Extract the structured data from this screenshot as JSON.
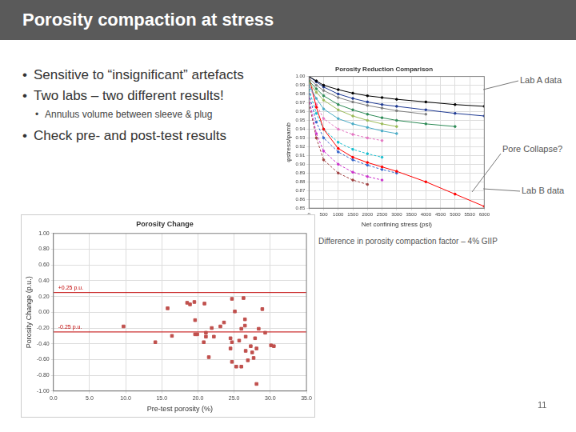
{
  "slide": {
    "title": "Porosity compaction at stress",
    "bullets": [
      {
        "text": "Sensitive to “insignificant” artefacts"
      },
      {
        "text": "Two labs – two different results!",
        "sub": [
          "Annulus volume between sleeve & plug"
        ]
      },
      {
        "text": "Check pre- and post-test results"
      }
    ],
    "page_number": 11
  },
  "chart_data": [
    {
      "type": "line",
      "title": "Porosity Reduction Comparison",
      "x_label": "Net confining stress (psi)",
      "y_label": "φstress/φamb",
      "annotations": [
        "Lab A data",
        "Pore Collapse?",
        "Lab B data",
        "Difference in porosity compaction factor – 4% GIIP"
      ],
      "x": [
        0,
        250,
        500,
        1000,
        1500,
        2000,
        2500,
        3000,
        4000,
        5000,
        6000
      ],
      "series": [
        {
          "color": "#000000",
          "values": [
            1.0,
            0.995,
            0.99,
            0.985,
            0.981,
            0.978,
            0.976,
            0.974,
            0.971,
            0.968,
            0.966
          ]
        },
        {
          "color": "#1f3a93",
          "values": [
            1.0,
            0.994,
            0.988,
            0.98,
            0.975,
            0.971,
            0.968,
            0.966,
            0.962,
            0.958,
            0.955
          ]
        },
        {
          "color": "#7f7f7f",
          "values": [
            0.998,
            0.99,
            0.984,
            0.976,
            0.971,
            0.967,
            0.964,
            0.961,
            0.957,
            null,
            null
          ]
        },
        {
          "color": "#2e8b57",
          "values": [
            0.995,
            0.986,
            0.978,
            0.968,
            0.962,
            0.957,
            0.953,
            0.95,
            0.946,
            0.943,
            null
          ]
        },
        {
          "color": "#9bbb59",
          "values": [
            0.993,
            0.982,
            0.973,
            0.962,
            0.955,
            0.95,
            0.946,
            0.943,
            null,
            null,
            null
          ]
        },
        {
          "color": "#4bacc6",
          "values": [
            0.99,
            0.975,
            0.963,
            0.952,
            0.946,
            0.942,
            0.938,
            0.935,
            null,
            null,
            null
          ]
        },
        {
          "color": "#ff0000",
          "values": [
            1.0,
            0.965,
            0.94,
            0.918,
            0.908,
            0.902,
            0.897,
            0.892,
            0.88,
            0.866,
            0.852
          ]
        },
        {
          "color": "#e377c2",
          "line_style": "dashed",
          "values": [
            0.992,
            0.968,
            0.952,
            0.94,
            0.934,
            0.93,
            0.927,
            null,
            null,
            null,
            null
          ]
        },
        {
          "color": "#17becf",
          "line_style": "dashed",
          "values": [
            0.985,
            0.958,
            0.94,
            0.925,
            0.917,
            0.912,
            0.908,
            null,
            null,
            null,
            null
          ]
        },
        {
          "color": "#3366cc",
          "line_style": "dashed",
          "values": [
            0.98,
            0.948,
            0.93,
            0.914,
            0.905,
            0.899,
            0.894,
            0.89,
            null,
            null,
            null
          ]
        },
        {
          "color": "#cc33cc",
          "line_style": "dashed",
          "values": [
            0.975,
            0.935,
            0.915,
            0.9,
            0.891,
            0.886,
            0.882,
            null,
            null,
            null,
            null
          ]
        },
        {
          "color": "#a04040",
          "line_style": "dashed",
          "values": [
            0.97,
            0.93,
            0.905,
            0.89,
            0.882,
            0.877,
            null,
            null,
            null,
            null,
            null
          ]
        }
      ],
      "xlim": [
        0,
        6000
      ],
      "xticks": [
        0,
        500,
        1000,
        1500,
        2000,
        2500,
        3000,
        3500,
        4000,
        4500,
        5000,
        5500,
        6000
      ],
      "ylim": [
        0.85,
        1.0
      ],
      "yticks": [
        0.85,
        0.86,
        0.87,
        0.88,
        0.89,
        {
          "value": 0.9,
          "label": "0.90"
        },
        0.91,
        0.92,
        0.93,
        0.94,
        0.95,
        0.96,
        0.97,
        0.98,
        0.99,
        {
          "value": 1.0,
          "label": "1.00"
        }
      ],
      "grid": true
    },
    {
      "type": "scatter",
      "title": "Porosity Change",
      "x_label": "Pre-test porosity (%)",
      "y_label": "Porosity Change (p.u.)",
      "color": "#c0504d",
      "marker": "square",
      "x": [
        9.7,
        14.1,
        15.8,
        16.4,
        18.5,
        18.9,
        19.5,
        20.9,
        19.6,
        19.6,
        19.9,
        21.1,
        21.1,
        20.8,
        21.5,
        22.2,
        21.9,
        23.1,
        23.6,
        24.5,
        24.7,
        24.5,
        24.7,
        24.7,
        26.3,
        25.1,
        26.5,
        26.6,
        26.6,
        26.0,
        25.3,
        26.9,
        27.5,
        27.7,
        27.3,
        28.1,
        27.9,
        28.4,
        29.3,
        30.1,
        30.5,
        28.1,
        28.9,
        26.5,
        26.0,
        25.7
      ],
      "values": [
        -0.18,
        -0.38,
        0.05,
        -0.3,
        0.12,
        0.1,
        0.13,
        0.11,
        -0.1,
        -0.28,
        -0.28,
        -0.26,
        -0.31,
        -0.38,
        -0.57,
        -0.31,
        -0.2,
        -0.18,
        -0.13,
        -0.33,
        -0.38,
        -0.46,
        -0.63,
        0.17,
        0.18,
        0.01,
        -0.17,
        -0.31,
        -0.49,
        -0.69,
        -0.69,
        -0.61,
        -0.51,
        -0.58,
        -0.43,
        -0.46,
        -0.33,
        -0.21,
        -0.26,
        -0.42,
        -0.43,
        -0.91,
        0.04,
        -0.09,
        -0.21,
        -0.36
      ],
      "reference_lines": [
        {
          "value": 0.25,
          "label": "+0.25 p.u.",
          "color": "#c00000"
        },
        {
          "value": -0.25,
          "label": "-0.25 p.u.",
          "color": "#c00000"
        }
      ],
      "xlim": [
        0,
        35
      ],
      "xticks": [
        {
          "value": 0,
          "label": "0.0"
        },
        {
          "value": 5,
          "label": "5.0"
        },
        {
          "value": 10,
          "label": "10.0"
        },
        {
          "value": 15,
          "label": "15.0"
        },
        {
          "value": 20,
          "label": "20.0"
        },
        {
          "value": 25,
          "label": "25.0"
        },
        {
          "value": 30,
          "label": "30.0"
        },
        {
          "value": 35,
          "label": "35.0"
        }
      ],
      "ylim": [
        -1.0,
        1.0
      ],
      "yticks": [
        {
          "value": -1.0,
          "label": "-1.00"
        },
        {
          "value": -0.8,
          "label": "-0.80"
        },
        {
          "value": -0.6,
          "label": "-0.60"
        },
        {
          "value": -0.4,
          "label": "-0.40"
        },
        {
          "value": -0.2,
          "label": "-0.20"
        },
        {
          "value": 0,
          "label": "0.00"
        },
        {
          "value": 0.2,
          "label": "0.20"
        },
        {
          "value": 0.4,
          "label": "0.40"
        },
        {
          "value": 0.6,
          "label": "0.60"
        },
        {
          "value": 0.8,
          "label": "0.80"
        },
        {
          "value": 1.0,
          "label": "1.00"
        }
      ],
      "grid": true
    }
  ]
}
